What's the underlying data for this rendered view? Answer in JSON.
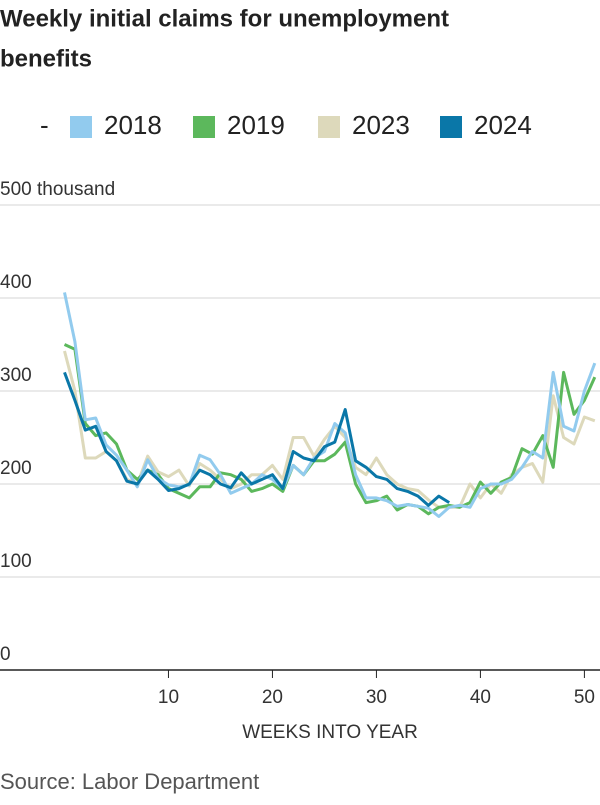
{
  "chart_data": {
    "type": "line",
    "title": [
      "Weekly initial claims for unemployment",
      "benefits"
    ],
    "legend_prefix": "-",
    "x_label": "WEEKS INTO YEAR",
    "source": "Source: Labor Department",
    "x": [
      0,
      1,
      2,
      3,
      4,
      5,
      6,
      7,
      8,
      9,
      10,
      11,
      12,
      13,
      14,
      15,
      16,
      17,
      18,
      19,
      20,
      21,
      22,
      23,
      24,
      25,
      26,
      27,
      28,
      29,
      30,
      31,
      32,
      33,
      34,
      35,
      36,
      37,
      38,
      39,
      40,
      41,
      42,
      43,
      44,
      45,
      46,
      47,
      48,
      49,
      50,
      51
    ],
    "xlim": [
      -6.2,
      51.5
    ],
    "xticks": [
      10,
      20,
      30,
      40,
      50
    ],
    "ylim": [
      0,
      500
    ],
    "yticks": [
      0,
      100,
      200,
      300,
      400,
      {
        "value": 500,
        "label": "500 thousand"
      }
    ],
    "grid": true,
    "series": [
      {
        "name": "2018",
        "color": "#92cbee",
        "values": [
          406,
          353,
          269,
          271,
          242,
          231,
          215,
          197,
          226,
          206,
          199,
          197,
          199,
          231,
          226,
          210,
          190,
          195,
          200,
          210,
          205,
          195,
          220,
          210,
          228,
          235,
          265,
          255,
          210,
          185,
          185,
          182,
          176,
          178,
          176,
          174,
          165,
          175,
          177,
          175,
          195,
          200,
          200,
          205,
          218,
          235,
          228,
          320,
          262,
          257,
          300,
          330
        ]
      },
      {
        "name": "2019",
        "color": "#5cb85c",
        "values": [
          350,
          345,
          265,
          252,
          255,
          243,
          215,
          205,
          215,
          210,
          195,
          190,
          185,
          197,
          197,
          212,
          210,
          205,
          192,
          195,
          200,
          192,
          220,
          210,
          225,
          225,
          232,
          245,
          200,
          180,
          182,
          187,
          172,
          178,
          176,
          168,
          175,
          177,
          175,
          180,
          202,
          190,
          202,
          207,
          238,
          232,
          252,
          218,
          320,
          275,
          290,
          315
        ]
      },
      {
        "name": "2023",
        "color": "#ddd9bb",
        "values": [
          343,
          300,
          228,
          228,
          235,
          225,
          205,
          200,
          230,
          213,
          208,
          215,
          198,
          222,
          215,
          205,
          195,
          200,
          210,
          210,
          220,
          205,
          250,
          250,
          230,
          248,
          262,
          250,
          218,
          210,
          228,
          210,
          200,
          195,
          193,
          183,
          175,
          175,
          175,
          200,
          185,
          200,
          190,
          210,
          218,
          222,
          202,
          295,
          250,
          243,
          272,
          268
        ]
      },
      {
        "name": "2024",
        "color": "#0a77a8",
        "values": [
          320,
          290,
          258,
          262,
          235,
          225,
          203,
          200,
          215,
          205,
          193,
          195,
          200,
          215,
          210,
          200,
          196,
          212,
          200,
          205,
          210,
          195,
          235,
          228,
          225,
          240,
          245,
          280,
          225,
          218,
          208,
          205,
          195,
          192,
          187,
          177,
          187,
          180,
          null,
          null,
          null,
          null,
          null,
          null,
          null,
          null,
          null,
          null,
          null,
          null,
          null,
          null
        ]
      }
    ]
  }
}
